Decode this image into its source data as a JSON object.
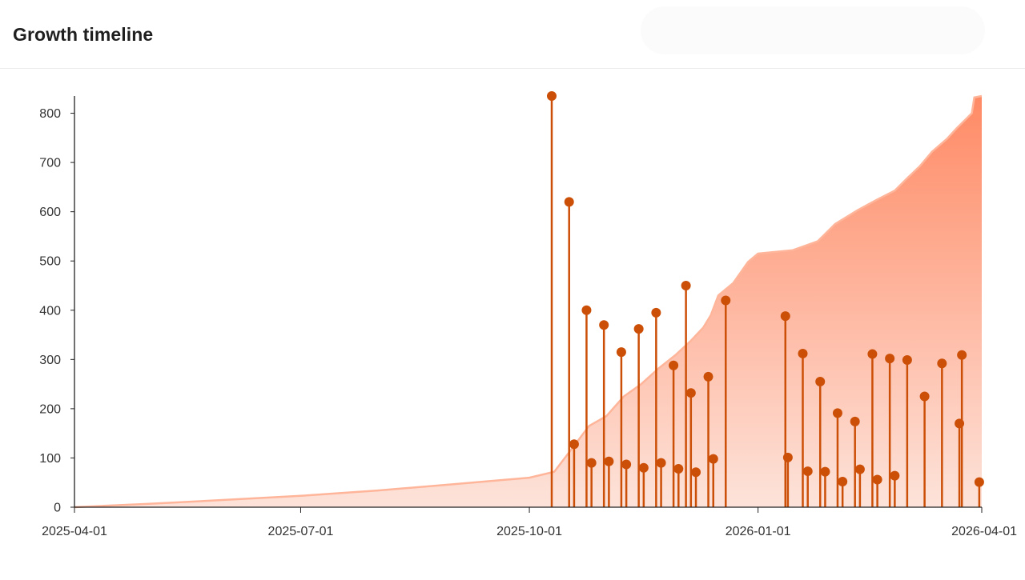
{
  "header": {
    "title": "Growth timeline"
  },
  "chart_data": {
    "type": "area",
    "title": "Growth timeline",
    "xlabel": "",
    "ylabel": "",
    "x_range": [
      "2025-04-01",
      "2026-04-01"
    ],
    "ylim": [
      0,
      835
    ],
    "x_ticks": [
      "2025-04-01",
      "2025-07-01",
      "2025-10-01",
      "2026-01-01",
      "2026-04-01"
    ],
    "y_ticks": [
      0,
      100,
      200,
      300,
      400,
      500,
      600,
      700,
      800
    ],
    "grid": false,
    "legend": "none",
    "colors": {
      "area_top": "#ff8a65",
      "area_bottom": "#fde3da",
      "area_line": "#ffb59a",
      "stem": "#cc4f08",
      "axis": "#222222",
      "tick_label": "#333333"
    },
    "series": [
      {
        "type": "area",
        "points": [
          [
            "2025-04-01",
            0
          ],
          [
            "2025-05-01",
            7
          ],
          [
            "2025-06-01",
            15
          ],
          [
            "2025-07-01",
            23
          ],
          [
            "2025-08-01",
            34
          ],
          [
            "2025-09-01",
            47
          ],
          [
            "2025-10-01",
            60
          ],
          [
            "2025-10-11",
            72
          ],
          [
            "2025-10-18",
            118
          ],
          [
            "2025-10-25",
            165
          ],
          [
            "2025-11-01",
            185
          ],
          [
            "2025-11-08",
            225
          ],
          [
            "2025-11-15",
            250
          ],
          [
            "2025-11-22",
            282
          ],
          [
            "2025-11-29",
            310
          ],
          [
            "2025-12-05",
            338
          ],
          [
            "2025-12-10",
            365
          ],
          [
            "2025-12-13",
            390
          ],
          [
            "2025-12-16",
            430
          ],
          [
            "2025-12-22",
            455
          ],
          [
            "2025-12-28",
            498
          ],
          [
            "2026-01-01",
            515
          ],
          [
            "2026-01-15",
            522
          ],
          [
            "2026-01-25",
            540
          ],
          [
            "2026-02-01",
            575
          ],
          [
            "2026-02-10",
            603
          ],
          [
            "2026-02-18",
            625
          ],
          [
            "2026-02-25",
            643
          ],
          [
            "2026-03-02",
            668
          ],
          [
            "2026-03-07",
            692
          ],
          [
            "2026-03-12",
            722
          ],
          [
            "2026-03-18",
            748
          ],
          [
            "2026-03-22",
            770
          ],
          [
            "2026-03-26",
            790
          ],
          [
            "2026-03-28",
            800
          ],
          [
            "2026-03-29",
            832
          ],
          [
            "2026-04-01",
            835
          ]
        ]
      },
      {
        "type": "stem",
        "points": [
          [
            "2025-10-10",
            835
          ],
          [
            "2025-10-17",
            620
          ],
          [
            "2025-10-19",
            128
          ],
          [
            "2025-10-24",
            400
          ],
          [
            "2025-10-26",
            90
          ],
          [
            "2025-10-31",
            370
          ],
          [
            "2025-11-02",
            93
          ],
          [
            "2025-11-07",
            315
          ],
          [
            "2025-11-09",
            87
          ],
          [
            "2025-11-14",
            362
          ],
          [
            "2025-11-16",
            80
          ],
          [
            "2025-11-21",
            395
          ],
          [
            "2025-11-23",
            90
          ],
          [
            "2025-11-28",
            288
          ],
          [
            "2025-11-30",
            78
          ],
          [
            "2025-12-03",
            450
          ],
          [
            "2025-12-05",
            232
          ],
          [
            "2025-12-07",
            71
          ],
          [
            "2025-12-12",
            265
          ],
          [
            "2025-12-14",
            98
          ],
          [
            "2025-12-19",
            420
          ],
          [
            "2026-01-12",
            388
          ],
          [
            "2026-01-13",
            101
          ],
          [
            "2026-01-19",
            312
          ],
          [
            "2026-01-21",
            73
          ],
          [
            "2026-01-26",
            255
          ],
          [
            "2026-01-28",
            72
          ],
          [
            "2026-02-02",
            191
          ],
          [
            "2026-02-04",
            52
          ],
          [
            "2026-02-09",
            174
          ],
          [
            "2026-02-11",
            77
          ],
          [
            "2026-02-16",
            311
          ],
          [
            "2026-02-18",
            56
          ],
          [
            "2026-02-23",
            302
          ],
          [
            "2026-02-25",
            64
          ],
          [
            "2026-03-02",
            299
          ],
          [
            "2026-03-09",
            225
          ],
          [
            "2026-03-16",
            292
          ],
          [
            "2026-03-23",
            170
          ],
          [
            "2026-03-24",
            309
          ],
          [
            "2026-03-31",
            51
          ]
        ]
      }
    ]
  }
}
